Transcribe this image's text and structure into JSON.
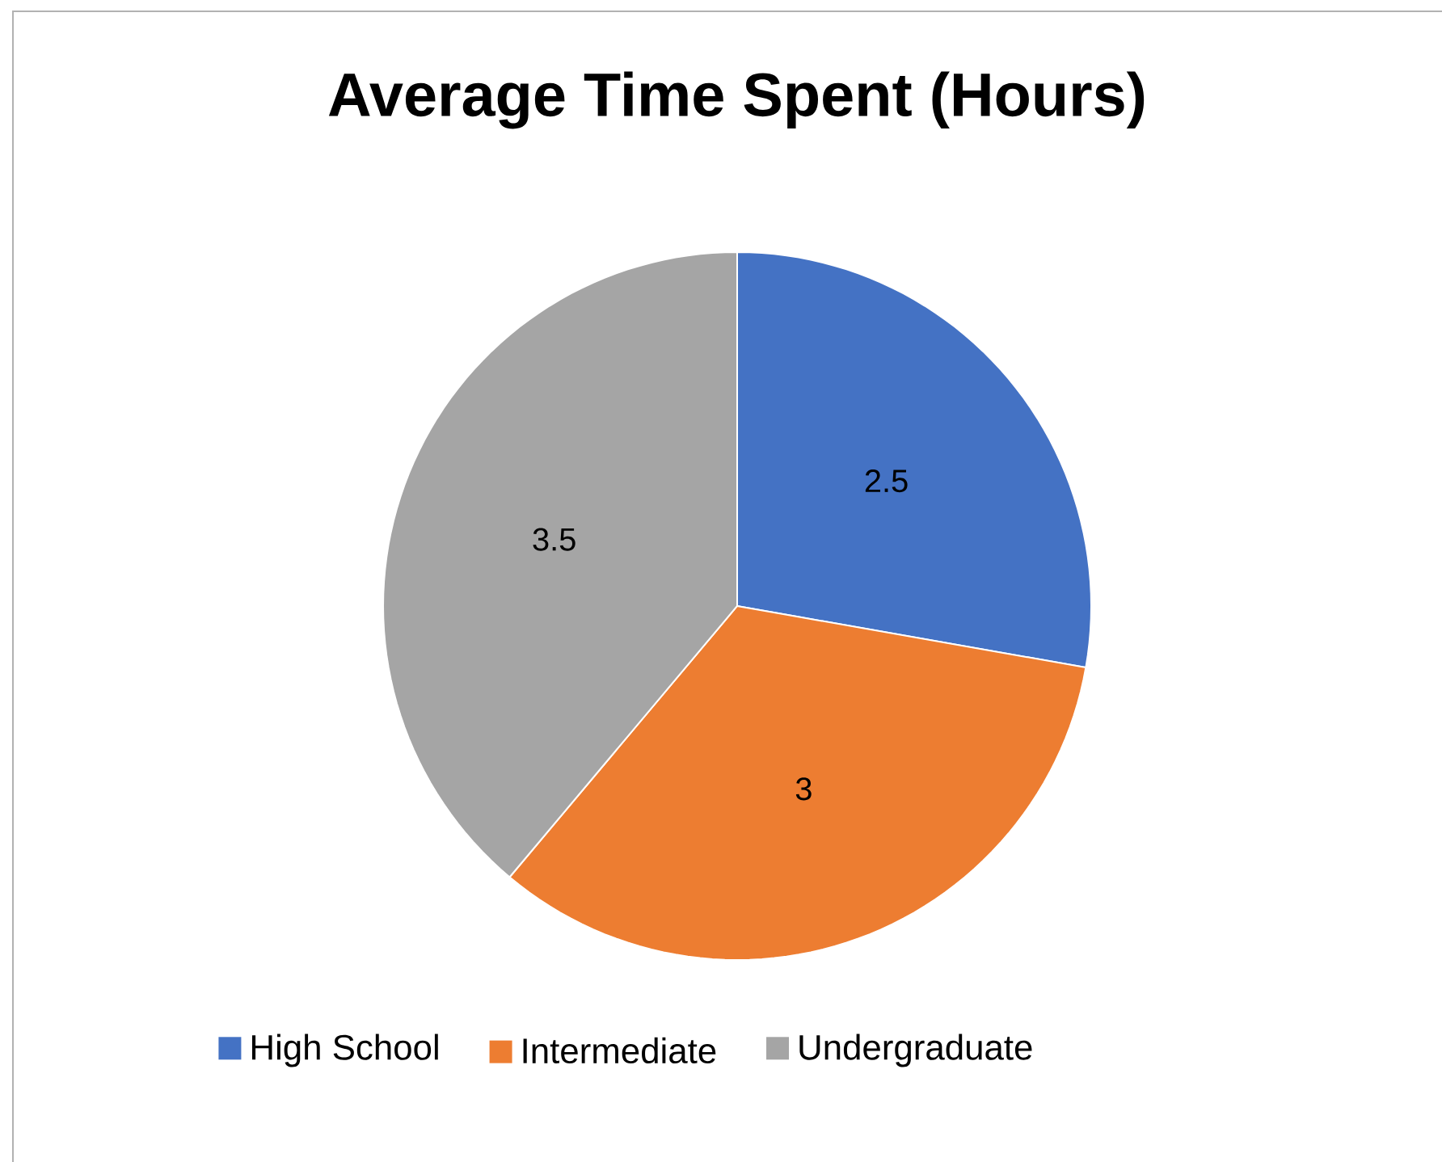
{
  "chart_data": {
    "type": "pie",
    "title": "Average Time Spent (Hours)",
    "categories": [
      "High School",
      "Intermediate",
      "Undergraduate"
    ],
    "values": [
      2.5,
      3,
      3.5
    ],
    "colors": [
      "#4472c4",
      "#ed7d31",
      "#a5a5a5"
    ],
    "data_labels": true,
    "legend": "bottom"
  }
}
